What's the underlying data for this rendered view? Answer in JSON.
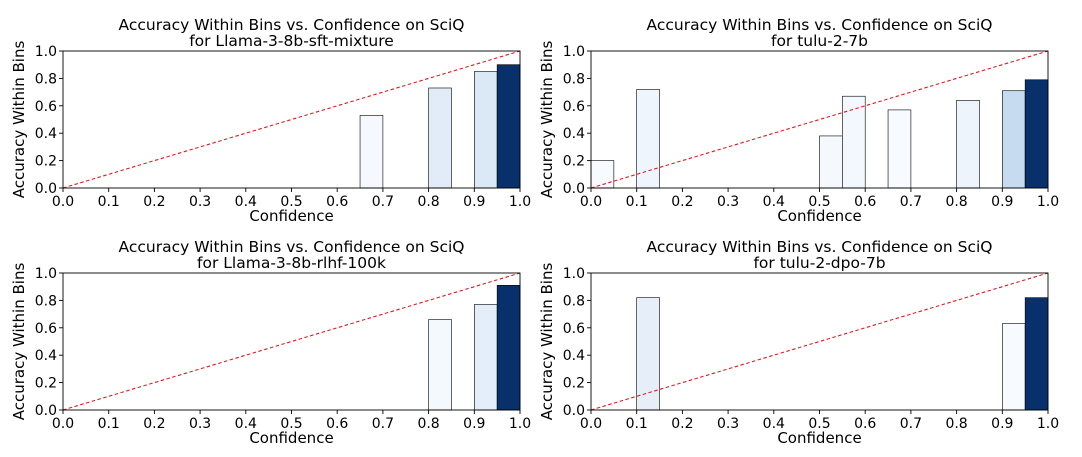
{
  "chart_data": [
    {
      "type": "bar",
      "title": "Accuracy Within Bins vs. Confidence on SciQ",
      "subtitle": "for Llama-3-8b-sft-mixture",
      "xlabel": "Confidence",
      "ylabel": "Accuracy Within Bins",
      "xlim": [
        0,
        1
      ],
      "ylim": [
        0,
        1
      ],
      "xticks": [
        "0.0",
        "0.1",
        "0.2",
        "0.3",
        "0.4",
        "0.5",
        "0.6",
        "0.7",
        "0.8",
        "0.9",
        "1.0"
      ],
      "yticks": [
        "0.0",
        "0.2",
        "0.4",
        "0.6",
        "0.8",
        "1.0"
      ],
      "bin_width": 0.05,
      "diagonal": true,
      "bins": [
        {
          "x": 0.65,
          "value": 0.53,
          "color": "#f5f9ff"
        },
        {
          "x": 0.8,
          "value": 0.73,
          "color": "#e1ecf8"
        },
        {
          "x": 0.9,
          "value": 0.85,
          "color": "#dbe8f6"
        },
        {
          "x": 0.95,
          "value": 0.9,
          "color": "#08306b"
        }
      ]
    },
    {
      "type": "bar",
      "title": "Accuracy Within Bins vs. Confidence on SciQ",
      "subtitle": "for tulu-2-7b",
      "xlabel": "Confidence",
      "ylabel": "Accuracy Within Bins",
      "xlim": [
        0,
        1
      ],
      "ylim": [
        0,
        1
      ],
      "xticks": [
        "0.0",
        "0.1",
        "0.2",
        "0.3",
        "0.4",
        "0.5",
        "0.6",
        "0.7",
        "0.8",
        "0.9",
        "1.0"
      ],
      "yticks": [
        "0.0",
        "0.2",
        "0.4",
        "0.6",
        "0.8",
        "1.0"
      ],
      "bin_width": 0.05,
      "diagonal": true,
      "bins": [
        {
          "x": 0.0,
          "value": 0.2,
          "color": "#f7fbff"
        },
        {
          "x": 0.1,
          "value": 0.72,
          "color": "#eef5fc"
        },
        {
          "x": 0.5,
          "value": 0.38,
          "color": "#f5f9fe"
        },
        {
          "x": 0.55,
          "value": 0.67,
          "color": "#f3f8fe"
        },
        {
          "x": 0.65,
          "value": 0.57,
          "color": "#f7fbff"
        },
        {
          "x": 0.8,
          "value": 0.64,
          "color": "#edf4fc"
        },
        {
          "x": 0.9,
          "value": 0.71,
          "color": "#c6dbef"
        },
        {
          "x": 0.95,
          "value": 0.79,
          "color": "#08306b"
        }
      ]
    },
    {
      "type": "bar",
      "title": "Accuracy Within Bins vs. Confidence on SciQ",
      "subtitle": "for Llama-3-8b-rlhf-100k",
      "xlabel": "Confidence",
      "ylabel": "Accuracy Within Bins",
      "xlim": [
        0,
        1
      ],
      "ylim": [
        0,
        1
      ],
      "xticks": [
        "0.0",
        "0.1",
        "0.2",
        "0.3",
        "0.4",
        "0.5",
        "0.6",
        "0.7",
        "0.8",
        "0.9",
        "1.0"
      ],
      "yticks": [
        "0.0",
        "0.2",
        "0.4",
        "0.6",
        "0.8",
        "1.0"
      ],
      "bin_width": 0.05,
      "diagonal": true,
      "bins": [
        {
          "x": 0.8,
          "value": 0.66,
          "color": "#f4f9fe"
        },
        {
          "x": 0.9,
          "value": 0.77,
          "color": "#e3eef9"
        },
        {
          "x": 0.95,
          "value": 0.91,
          "color": "#08306b"
        }
      ]
    },
    {
      "type": "bar",
      "title": "Accuracy Within Bins vs. Confidence on SciQ",
      "subtitle": "for tulu-2-dpo-7b",
      "xlabel": "Confidence",
      "ylabel": "Accuracy Within Bins",
      "xlim": [
        0,
        1
      ],
      "ylim": [
        0,
        1
      ],
      "xticks": [
        "0.0",
        "0.1",
        "0.2",
        "0.3",
        "0.4",
        "0.5",
        "0.6",
        "0.7",
        "0.8",
        "0.9",
        "1.0"
      ],
      "yticks": [
        "0.0",
        "0.2",
        "0.4",
        "0.6",
        "0.8",
        "1.0"
      ],
      "bin_width": 0.05,
      "diagonal": true,
      "bins": [
        {
          "x": 0.1,
          "value": 0.82,
          "color": "#e6eff9"
        },
        {
          "x": 0.9,
          "value": 0.63,
          "color": "#f7fbff"
        },
        {
          "x": 0.95,
          "value": 0.82,
          "color": "#08306b"
        }
      ]
    }
  ]
}
